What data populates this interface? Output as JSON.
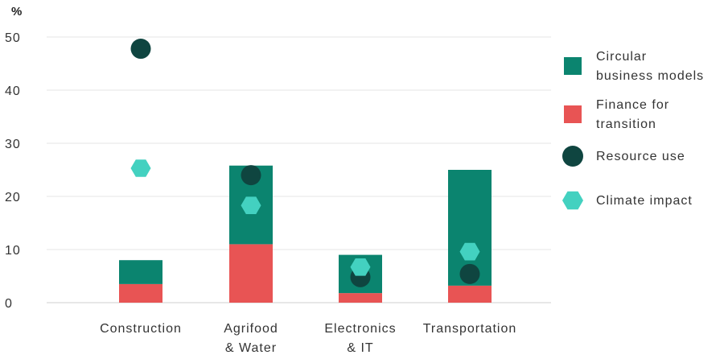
{
  "chart_data": {
    "type": "bar",
    "stacked": true,
    "y_unit": "%",
    "ylim": [
      0,
      50
    ],
    "yticks": [
      0,
      10,
      20,
      30,
      40,
      50
    ],
    "grid": true,
    "legend_position": "right",
    "categories": [
      [
        "Construction"
      ],
      [
        "Agrifood",
        "& Water"
      ],
      [
        "Electronics",
        "& IT"
      ],
      [
        "Transportation"
      ]
    ],
    "series": [
      {
        "name": [
          "Finance for",
          "transition"
        ],
        "kind": "bar",
        "color": "#e85454",
        "values": [
          3.5,
          11,
          1.8,
          3.2
        ]
      },
      {
        "name": [
          "Circular",
          "business models"
        ],
        "kind": "bar",
        "color": "#0b846f",
        "values": [
          4.5,
          14.8,
          7.2,
          21.8
        ]
      },
      {
        "name": [
          "Resource use"
        ],
        "kind": "circle",
        "color": "#0f4540",
        "values": [
          47.8,
          24,
          4.8,
          5.4
        ]
      },
      {
        "name": [
          "Climate impact"
        ],
        "kind": "hexagon",
        "color": "#43d1c0",
        "values": [
          25.3,
          18.3,
          6.7,
          9.6
        ]
      }
    ],
    "legend_order": [
      1,
      0,
      2,
      3
    ]
  }
}
